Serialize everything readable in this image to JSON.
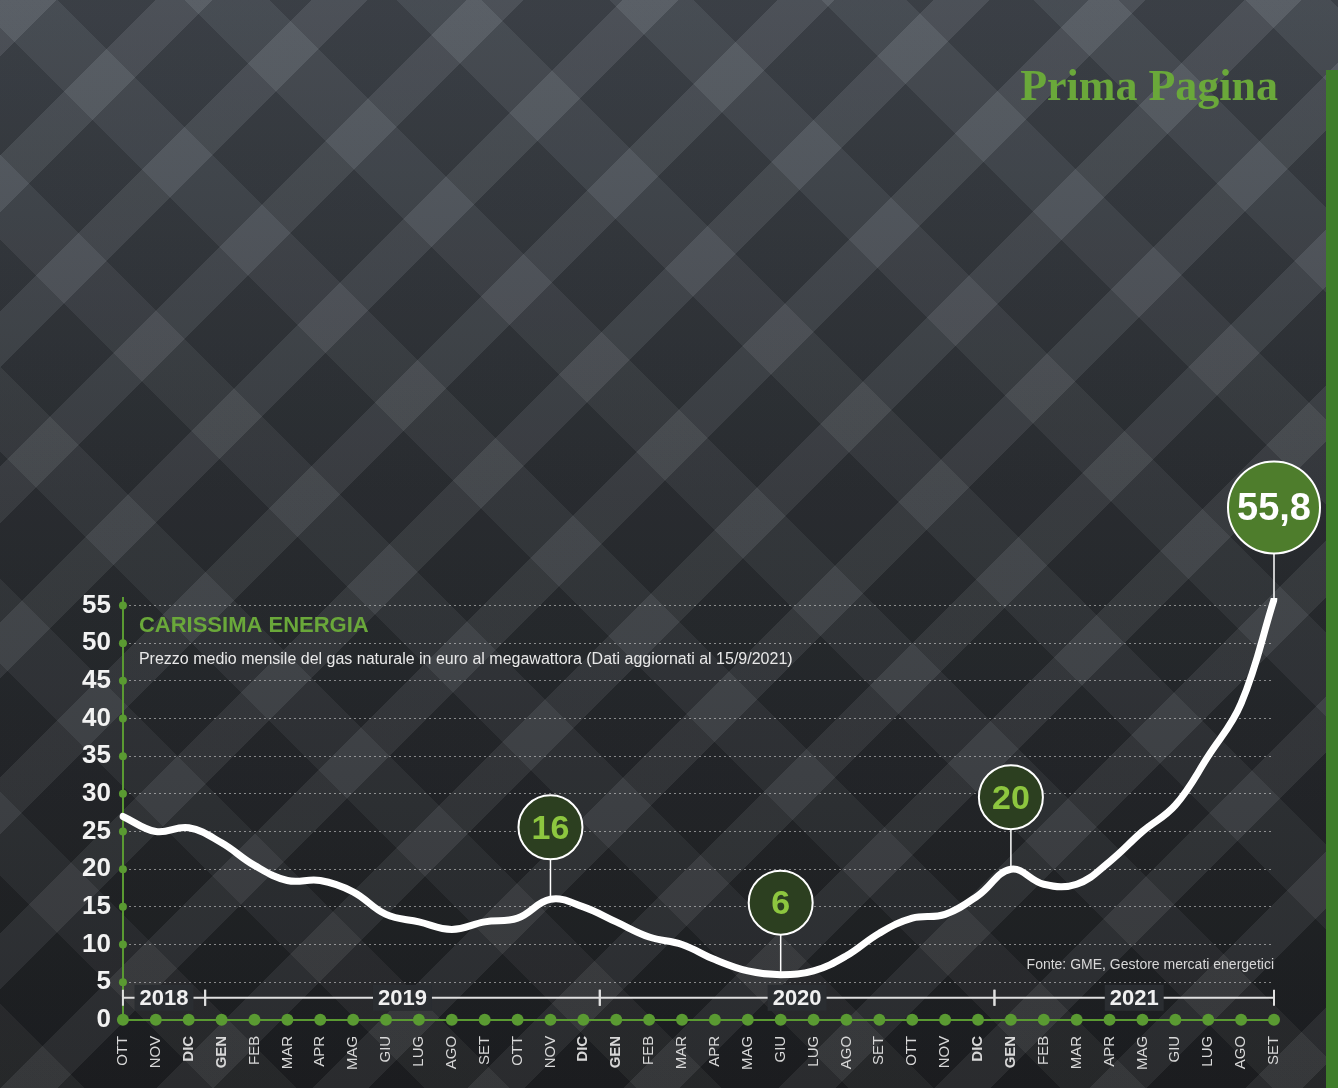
{
  "header": "Prima Pagina",
  "chart_data": {
    "type": "line",
    "title": "CARISSIMA ENERGIA",
    "subtitle": "Prezzo medio mensile del gas naturale in euro al megawattora (Dati aggiornati al 15/9/2021)",
    "source": "Fonte: GME, Gestore mercati energetici",
    "categories": [
      "OTT",
      "NOV",
      "DIC",
      "GEN",
      "FEB",
      "MAR",
      "APR",
      "MAG",
      "GIU",
      "LUG",
      "AGO",
      "SET",
      "OTT",
      "NOV",
      "DIC",
      "GEN",
      "FEB",
      "MAR",
      "APR",
      "MAG",
      "GIU",
      "LUG",
      "AGO",
      "SET",
      "OTT",
      "NOV",
      "DIC",
      "GEN",
      "FEB",
      "MAR",
      "APR",
      "MAG",
      "GIU",
      "LUG",
      "AGO",
      "SET"
    ],
    "years": [
      "2018",
      "2018",
      "2018",
      "2019",
      "2019",
      "2019",
      "2019",
      "2019",
      "2019",
      "2019",
      "2019",
      "2019",
      "2019",
      "2019",
      "2019",
      "2020",
      "2020",
      "2020",
      "2020",
      "2020",
      "2020",
      "2020",
      "2020",
      "2020",
      "2020",
      "2020",
      "2020",
      "2021",
      "2021",
      "2021",
      "2021",
      "2021",
      "2021",
      "2021",
      "2021",
      "2021"
    ],
    "values": [
      27,
      25,
      25.5,
      23.5,
      20.5,
      18.5,
      18.5,
      17,
      14,
      13,
      12,
      13,
      13.5,
      16,
      15,
      13,
      11,
      10,
      8,
      6.5,
      6,
      6.5,
      8.5,
      11.5,
      13.5,
      14,
      16.5,
      20,
      18,
      18,
      21,
      25,
      28.5,
      35,
      42,
      55.8
    ],
    "value_labels": [
      null,
      null,
      null,
      null,
      null,
      null,
      null,
      null,
      null,
      null,
      null,
      null,
      null,
      "16",
      null,
      null,
      null,
      null,
      null,
      null,
      "6",
      null,
      null,
      null,
      null,
      null,
      null,
      "20",
      null,
      null,
      null,
      null,
      null,
      null,
      null,
      "55,8"
    ],
    "color": "#ffffff",
    "ylim": [
      0,
      56
    ],
    "yticks": [
      0,
      5,
      10,
      15,
      20,
      25,
      30,
      35,
      40,
      45,
      50,
      55
    ],
    "grid": true
  }
}
